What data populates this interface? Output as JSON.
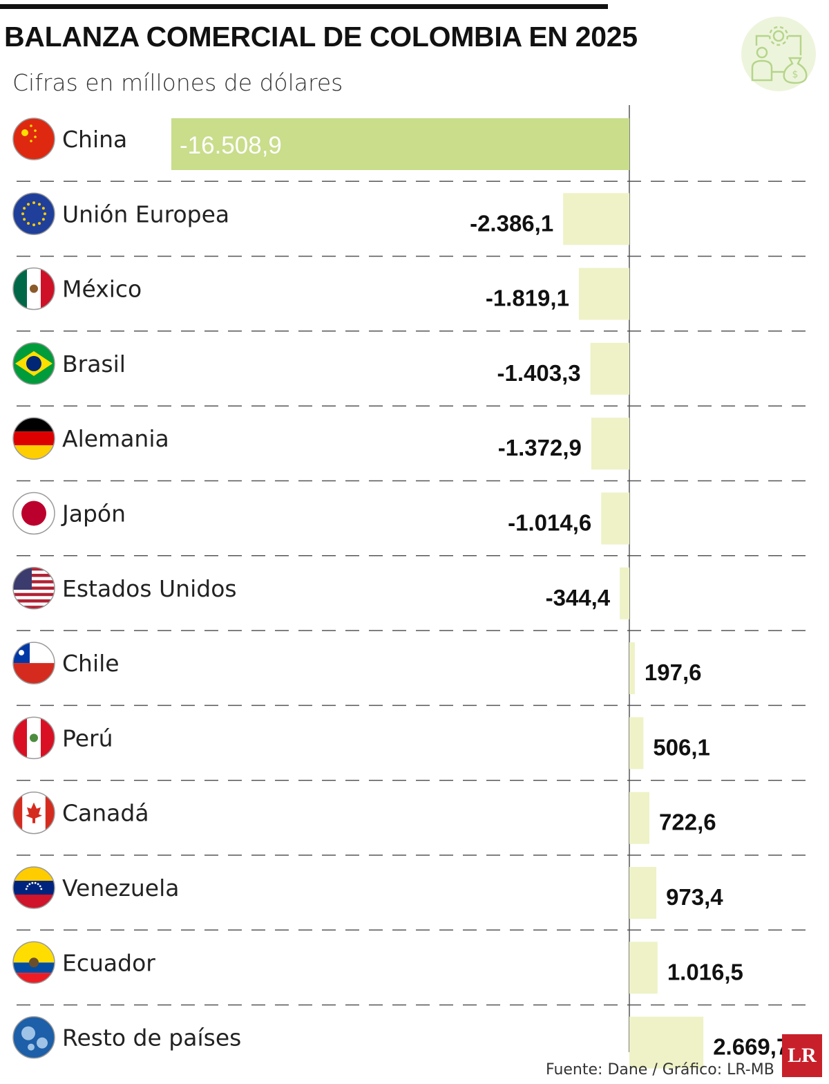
{
  "header": {
    "title": "BALANZA COMERCIAL DE COLOMBIA EN 2025",
    "subtitle": "Cifras en míllones de dólares"
  },
  "footer": {
    "source": "Fuente:  Dane / Gráfico: LR-MB",
    "logo": "LR"
  },
  "colors": {
    "highlight_bar": "#c9dd8b",
    "bar": "#eef2c6",
    "axis": "#555555",
    "divider": "#555555",
    "logo": "#c8202a",
    "emblem": "#b5d58a"
  },
  "icons": [
    "gear-icon",
    "person-icon",
    "money-bag-icon"
  ],
  "chart_data": {
    "type": "bar",
    "orientation": "horizontal",
    "title": "BALANZA COMERCIAL DE COLOMBIA EN 2025",
    "subtitle": "Cifras en míllones de dólares",
    "categories": [
      "China",
      "Unión Europea",
      "México",
      "Brasil",
      "Alemania",
      "Japón",
      "Estados Unidos",
      "Chile",
      "Perú",
      "Canadá",
      "Venezuela",
      "Ecuador",
      "Resto de países"
    ],
    "values": [
      -16508.9,
      -2386.1,
      -1819.1,
      -1403.3,
      -1372.9,
      -1014.6,
      -344.4,
      197.6,
      506.1,
      722.6,
      973.4,
      1016.5,
      2669.7
    ],
    "labels": [
      "-16.508,9",
      "-2.386,1",
      "-1.819,1",
      "-1.403,3",
      "-1.372,9",
      "-1.014,6",
      "-344,4",
      "197,6",
      "506,1",
      "722,6",
      "973,4",
      "1.016,5",
      "2.669,7"
    ],
    "flags": [
      "china-flag-icon",
      "eu-flag-icon",
      "mexico-flag-icon",
      "brazil-flag-icon",
      "germany-flag-icon",
      "japan-flag-icon",
      "usa-flag-icon",
      "chile-flag-icon",
      "peru-flag-icon",
      "canada-flag-icon",
      "venezuela-flag-icon",
      "ecuador-flag-icon",
      "globe-icon"
    ],
    "highlight": "China",
    "xlim": [
      -16508.9,
      4000
    ],
    "grid": false,
    "legend": "none"
  }
}
